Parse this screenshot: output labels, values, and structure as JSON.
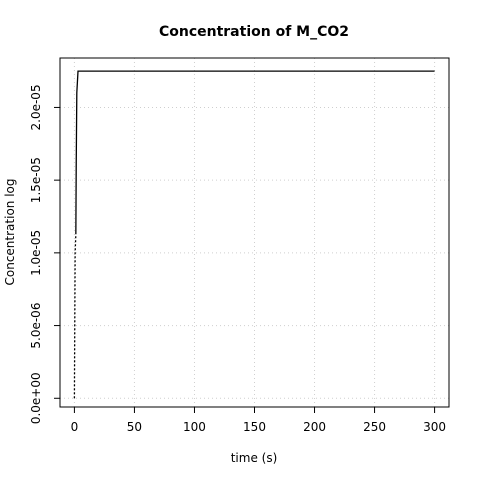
{
  "chart_data": {
    "type": "line",
    "title": "Concentration of M_CO2",
    "xlabel": "time (s)",
    "ylabel": "Concentration log",
    "xlim": [
      -12,
      312
    ],
    "ylim": [
      -6e-07,
      2.34e-05
    ],
    "grid": true,
    "x_ticks": [
      {
        "value": 0,
        "label": "0"
      },
      {
        "value": 50,
        "label": "50"
      },
      {
        "value": 100,
        "label": "100"
      },
      {
        "value": 150,
        "label": "150"
      },
      {
        "value": 200,
        "label": "200"
      },
      {
        "value": 250,
        "label": "250"
      },
      {
        "value": 300,
        "label": "300"
      }
    ],
    "y_ticks": [
      {
        "value": 0,
        "label": "0.0e+00"
      },
      {
        "value": 5e-06,
        "label": "5.0e-06"
      },
      {
        "value": 1e-05,
        "label": "1.0e-05"
      },
      {
        "value": 1.5e-05,
        "label": "1.5e-05"
      },
      {
        "value": 2e-05,
        "label": "2.0e-05"
      }
    ],
    "series": [
      {
        "style": "dotted",
        "color": "#000000",
        "x": [
          0,
          0.3,
          0.6,
          1.2
        ],
        "y": [
          0,
          5e-06,
          1e-05,
          1.13e-05
        ]
      },
      {
        "style": "solid",
        "color": "#000000",
        "x": [
          1.2,
          1.5,
          2.0,
          3.0,
          300
        ],
        "y": [
          1.13e-05,
          1.6e-05,
          2.1e-05,
          2.25e-05,
          2.25e-05
        ]
      }
    ]
  }
}
